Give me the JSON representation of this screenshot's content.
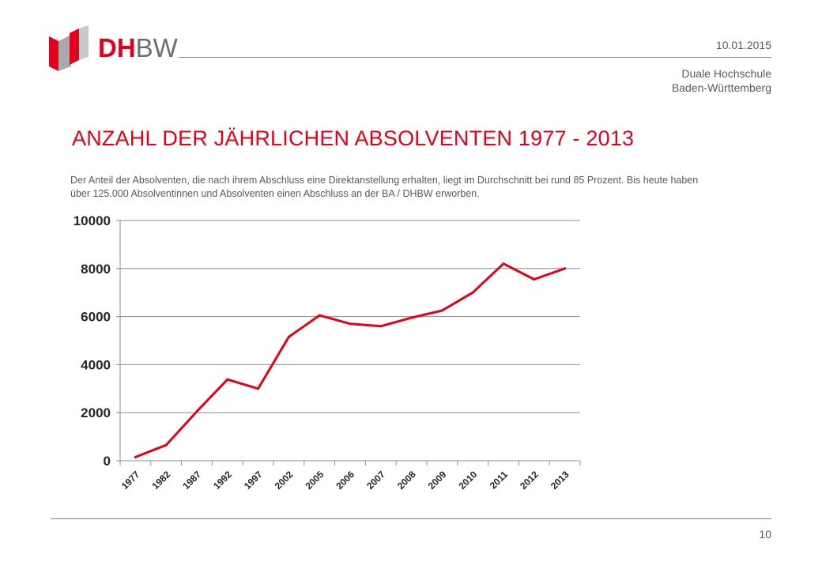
{
  "header": {
    "logo_dh": "DH",
    "logo_bw": "BW",
    "date": "10.01.2015",
    "institution_line1": "Duale Hochschule",
    "institution_line2": "Baden-Württemberg"
  },
  "slide": {
    "title": "ANZAHL DER JÄHRLICHEN ABSOLVENTEN 1977 - 2013",
    "intro": "Der Anteil der Absolventen, die nach ihrem Abschluss eine Direktanstellung erhalten, liegt im Durchschnitt bei rund 85 Prozent. Bis heute haben über 125.000 Absolventinnen und Absolventen einen Abschluss an der BA / DHBW erworben."
  },
  "colors": {
    "brand_red": "#e2001a",
    "logo_gray": "#6d6e71",
    "text_gray": "#595959",
    "line_red": "#e2001a"
  },
  "chart_data": {
    "type": "line",
    "categories": [
      "1977",
      "1982",
      "1987",
      "1992",
      "1997",
      "2002",
      "2005",
      "2006",
      "2007",
      "2008",
      "2009",
      "2010",
      "2011",
      "2012",
      "2013"
    ],
    "values": [
      150,
      650,
      2050,
      3380,
      3000,
      5150,
      6050,
      5700,
      5600,
      5950,
      6250,
      7000,
      8200,
      7550,
      8000
    ],
    "ylim": [
      0,
      10000
    ],
    "yticks": [
      "0",
      "2000",
      "4000",
      "6000",
      "8000",
      "10000"
    ],
    "grid": true,
    "legend": "none"
  },
  "footer": {
    "page_number": "10"
  }
}
